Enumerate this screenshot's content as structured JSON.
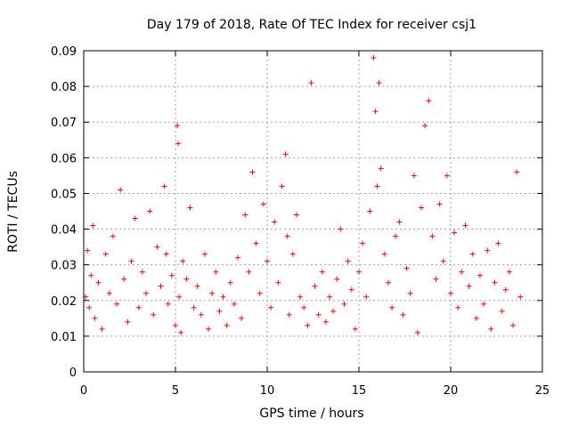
{
  "chart_data": {
    "type": "scatter",
    "title": "Day 179 of 2018, Rate Of TEC Index for receiver csj1",
    "xlabel": "GPS time / hours",
    "ylabel": "ROTI / TECUs",
    "xlim": [
      0,
      25
    ],
    "ylim": [
      0,
      0.09
    ],
    "xticks": [
      0,
      5,
      10,
      15,
      20,
      25
    ],
    "xtick_labels": [
      "0",
      "5",
      "10",
      "15",
      "20",
      "25"
    ],
    "yticks": [
      0,
      0.01,
      0.02,
      0.03,
      0.04,
      0.05,
      0.06,
      0.07,
      0.08,
      0.09
    ],
    "ytick_labels": [
      "0",
      "0.01",
      "0.02",
      "0.03",
      "0.04",
      "0.05",
      "0.06",
      "0.07",
      "0.08",
      "0.09"
    ],
    "grid": true,
    "marker": "+",
    "color": "#ff0000",
    "series": [
      {
        "name": "ROTI",
        "x": [
          0.1,
          0.2,
          0.3,
          0.4,
          0.5,
          0.6,
          0.8,
          1.0,
          1.2,
          1.4,
          1.6,
          1.8,
          2.0,
          2.2,
          2.4,
          2.6,
          2.8,
          3.0,
          3.2,
          3.4,
          3.6,
          3.8,
          4.0,
          4.2,
          4.4,
          4.5,
          4.6,
          4.8,
          5.0,
          5.1,
          5.15,
          5.2,
          5.3,
          5.4,
          5.6,
          5.8,
          6.0,
          6.2,
          6.4,
          6.6,
          6.8,
          7.0,
          7.2,
          7.4,
          7.6,
          7.8,
          8.0,
          8.2,
          8.4,
          8.6,
          8.8,
          9.0,
          9.2,
          9.4,
          9.6,
          9.8,
          10.0,
          10.2,
          10.4,
          10.6,
          10.8,
          11.0,
          11.1,
          11.2,
          11.4,
          11.6,
          11.8,
          12.0,
          12.2,
          12.4,
          12.6,
          12.8,
          13.0,
          13.2,
          13.4,
          13.6,
          13.8,
          14.0,
          14.2,
          14.4,
          14.6,
          14.8,
          15.0,
          15.2,
          15.4,
          15.6,
          15.8,
          15.9,
          16.0,
          16.1,
          16.2,
          16.4,
          16.6,
          16.8,
          17.0,
          17.2,
          17.4,
          17.6,
          17.8,
          18.0,
          18.2,
          18.4,
          18.6,
          18.8,
          19.0,
          19.2,
          19.4,
          19.6,
          19.8,
          20.0,
          20.2,
          20.4,
          20.6,
          20.8,
          21.0,
          21.2,
          21.4,
          21.6,
          21.8,
          22.0,
          22.2,
          22.4,
          22.6,
          22.8,
          23.0,
          23.2,
          23.4,
          23.6,
          23.8
        ],
        "y": [
          0.021,
          0.034,
          0.018,
          0.027,
          0.041,
          0.015,
          0.025,
          0.012,
          0.033,
          0.022,
          0.038,
          0.019,
          0.051,
          0.026,
          0.014,
          0.031,
          0.043,
          0.018,
          0.028,
          0.022,
          0.045,
          0.016,
          0.035,
          0.024,
          0.052,
          0.033,
          0.019,
          0.027,
          0.013,
          0.069,
          0.064,
          0.021,
          0.011,
          0.031,
          0.026,
          0.046,
          0.018,
          0.024,
          0.016,
          0.033,
          0.012,
          0.022,
          0.028,
          0.017,
          0.021,
          0.013,
          0.025,
          0.019,
          0.032,
          0.015,
          0.044,
          0.028,
          0.056,
          0.036,
          0.022,
          0.047,
          0.031,
          0.018,
          0.042,
          0.025,
          0.052,
          0.061,
          0.038,
          0.016,
          0.033,
          0.044,
          0.021,
          0.018,
          0.013,
          0.081,
          0.024,
          0.016,
          0.028,
          0.014,
          0.021,
          0.017,
          0.026,
          0.04,
          0.019,
          0.031,
          0.023,
          0.012,
          0.028,
          0.036,
          0.021,
          0.045,
          0.088,
          0.073,
          0.052,
          0.081,
          0.057,
          0.033,
          0.025,
          0.018,
          0.038,
          0.042,
          0.016,
          0.029,
          0.022,
          0.055,
          0.011,
          0.046,
          0.069,
          0.076,
          0.038,
          0.026,
          0.047,
          0.031,
          0.055,
          0.022,
          0.039,
          0.018,
          0.028,
          0.041,
          0.024,
          0.033,
          0.015,
          0.027,
          0.019,
          0.034,
          0.012,
          0.025,
          0.036,
          0.017,
          0.023,
          0.028,
          0.013,
          0.056,
          0.021
        ]
      }
    ]
  }
}
